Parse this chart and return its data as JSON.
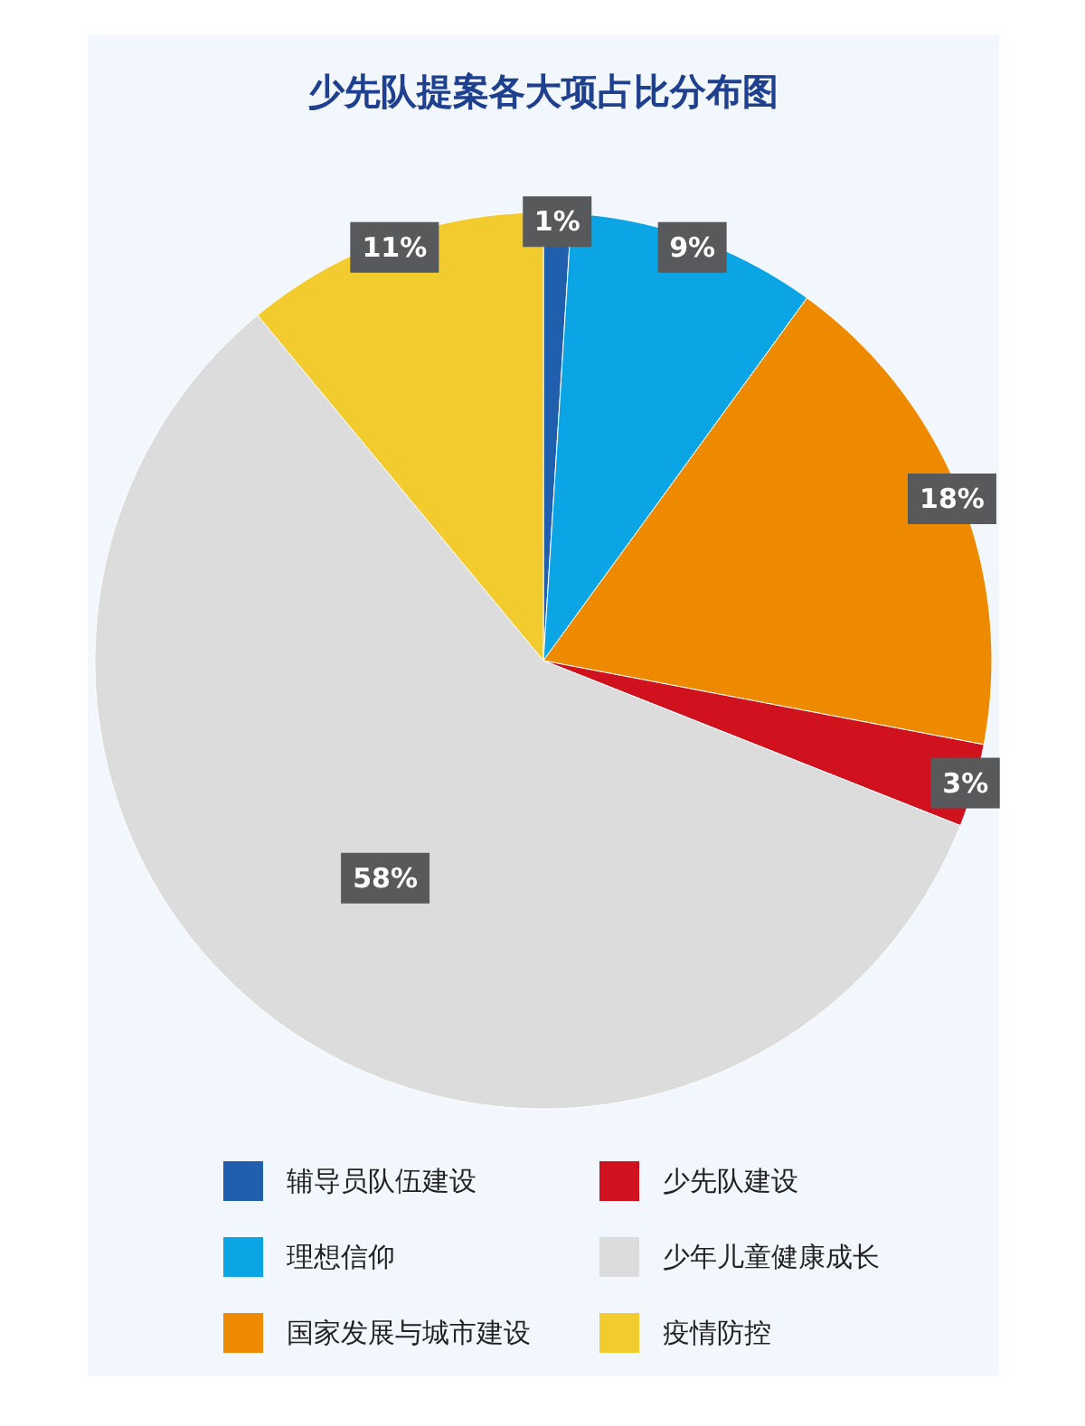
{
  "chart_data": {
    "type": "pie",
    "title": "少先队提案各大项占比分布图",
    "categories": [
      "辅导员队伍建设",
      "理想信仰",
      "国家发展与城市建设",
      "少先队建设",
      "少年儿童健康成长",
      "疫情防控"
    ],
    "values": [
      1,
      9,
      18,
      3,
      58,
      11
    ],
    "colors": [
      "#1f5fae",
      "#0ba5e6",
      "#ee8a00",
      "#d0121e",
      "#dcdcdc",
      "#f2cc2e"
    ],
    "value_labels": [
      "1%",
      "9%",
      "18%",
      "3%",
      "58%",
      "11%"
    ],
    "legend": "bottom"
  }
}
